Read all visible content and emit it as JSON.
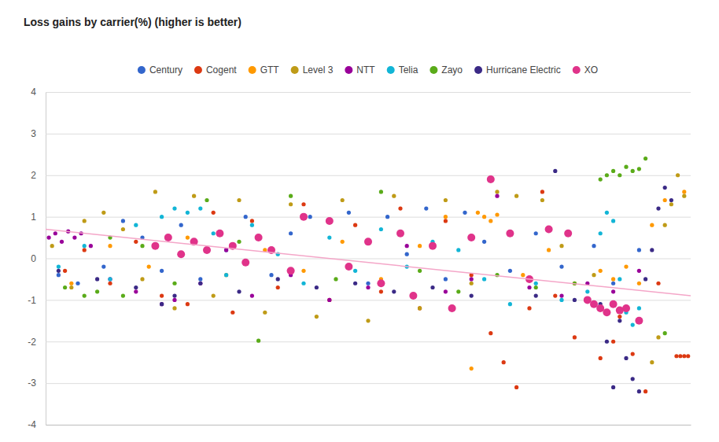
{
  "chart_data": {
    "type": "scatter",
    "title": "Loss gains by carrier(%) (higher is better)",
    "xlim": [
      0,
      100
    ],
    "ylim": [
      -4,
      4
    ],
    "yticks": [
      -4,
      -3,
      -2,
      -1,
      0,
      1,
      2,
      3,
      4
    ],
    "grid": true,
    "legend": "top",
    "tick_labels": "y",
    "series": [
      {
        "name": "Century",
        "color": "#3366cc",
        "marker": "circle",
        "x": [
          2,
          5,
          9,
          12,
          15,
          18,
          21,
          24,
          28,
          31,
          35,
          38,
          41,
          44,
          47,
          50,
          53,
          56,
          59,
          62,
          65,
          68,
          72,
          76,
          80,
          85,
          88,
          92
        ],
        "values": [
          -0.4,
          -0.6,
          -0.2,
          0.9,
          0.5,
          -0.3,
          0.8,
          -0.5,
          0.2,
          1.0,
          -0.4,
          0.6,
          1.0,
          0.9,
          1.1,
          -0.6,
          1.0,
          0.1,
          1.2,
          -0.5,
          1.1,
          0.4,
          -0.3,
          0.6,
          -0.2,
          0.3,
          -0.6,
          0.2
        ]
      },
      {
        "name": "Cogent",
        "color": "#dc3912",
        "marker": "circle",
        "x": [
          3,
          6,
          10,
          14,
          18,
          22,
          26,
          29,
          32,
          36,
          40,
          44,
          48,
          52,
          55,
          58,
          62,
          66,
          69,
          71,
          73,
          75,
          77,
          79,
          82,
          86,
          88,
          89,
          91,
          93,
          95,
          97.8,
          98.4,
          99,
          99.6
        ],
        "values": [
          -0.3,
          0.2,
          -0.6,
          0.4,
          -0.9,
          -1.1,
          1.1,
          -1.3,
          0.9,
          -0.7,
          1.3,
          -1.0,
          0.8,
          -0.8,
          1.2,
          -1.2,
          0.9,
          -0.4,
          -1.8,
          -2.5,
          -3.1,
          -1.2,
          1.6,
          -0.9,
          -1.9,
          -2.4,
          -2.0,
          -1.4,
          -2.3,
          -3.2,
          -0.6,
          -2.35,
          -2.35,
          -2.35,
          -2.35
        ]
      },
      {
        "name": "GTT",
        "color": "#ff9900",
        "marker": "circle",
        "x": [
          4,
          10,
          16,
          22,
          28,
          34,
          40,
          46,
          52,
          58,
          66,
          62,
          67,
          68,
          69,
          70,
          74,
          78,
          82,
          86,
          88,
          90,
          92,
          94,
          96,
          99
        ],
        "values": [
          -0.6,
          0.3,
          -0.2,
          0.5,
          -0.4,
          0.2,
          -0.3,
          0.4,
          -0.5,
          0.3,
          -2.65,
          1.0,
          1.1,
          1.0,
          0.9,
          1.05,
          -0.4,
          0.2,
          -0.6,
          -0.3,
          -0.5,
          -0.2,
          -0.6,
          0.8,
          1.4,
          1.6
        ]
      },
      {
        "name": "Level 3",
        "color": "#bf9b17",
        "marker": "circle",
        "x": [
          1,
          4,
          6,
          9,
          12,
          15,
          17,
          20,
          23,
          26,
          30,
          34,
          38,
          42,
          46,
          50,
          54,
          58,
          62,
          66,
          70,
          73,
          75,
          77,
          80,
          85,
          94,
          95,
          96,
          97,
          98,
          99
        ],
        "values": [
          0.3,
          -0.7,
          0.9,
          1.1,
          0.7,
          -0.5,
          1.6,
          -1.2,
          1.5,
          -0.9,
          1.4,
          -1.3,
          1.3,
          -1.4,
          1.4,
          -1.5,
          1.5,
          -1.2,
          1.4,
          -0.6,
          1.6,
          1.5,
          -0.5,
          1.4,
          0.3,
          -0.4,
          -2.5,
          -1.9,
          0.8,
          1.3,
          2.0,
          1.5
        ]
      },
      {
        "name": "NTT",
        "color": "#990099",
        "marker": "circle",
        "x": [
          0.5,
          1.5,
          2.5,
          3.5,
          4.5,
          5.5,
          7,
          10,
          14,
          18,
          20,
          24,
          28,
          32,
          38,
          44,
          50,
          56,
          62,
          66,
          70,
          75,
          80,
          84,
          88,
          92
        ],
        "values": [
          0.5,
          0.6,
          0.4,
          0.65,
          0.5,
          0.6,
          0.3,
          -0.5,
          -0.8,
          -1.1,
          -1.0,
          -0.6,
          0.2,
          -0.9,
          -0.4,
          -1.0,
          -0.7,
          0.3,
          -0.8,
          -0.5,
          1.5,
          -0.7,
          -0.9,
          -0.6,
          -0.8,
          -0.3
        ]
      },
      {
        "name": "Telia",
        "color": "#12b5d6",
        "marker": "circle",
        "x": [
          2,
          6,
          10,
          14,
          18,
          20,
          22,
          24,
          26,
          28,
          32,
          36,
          40,
          44,
          48,
          52,
          56,
          60,
          64,
          68,
          72,
          76,
          80,
          84,
          86,
          87,
          88,
          89,
          90,
          91,
          92
        ],
        "values": [
          -0.2,
          0.3,
          -0.5,
          0.8,
          1.0,
          1.2,
          1.1,
          1.2,
          0.6,
          -0.4,
          0.8,
          0.1,
          -0.6,
          0.5,
          -0.3,
          0.7,
          -0.2,
          0.4,
          0.2,
          -0.5,
          -1.1,
          -0.6,
          -1.0,
          -0.8,
          0.6,
          1.1,
          0.9,
          -0.5,
          -1.3,
          -1.6,
          -1.2
        ]
      },
      {
        "name": "Zayo",
        "color": "#5aab19",
        "marker": "circle",
        "x": [
          3,
          6,
          8,
          10,
          12,
          15,
          20,
          25,
          33,
          30,
          38,
          45,
          52,
          58,
          64,
          70,
          76,
          82,
          86,
          87,
          88,
          89,
          90,
          91,
          92,
          93,
          96
        ],
        "values": [
          -0.7,
          -0.9,
          -0.8,
          0.5,
          -0.9,
          0.3,
          -0.6,
          1.4,
          -1.98,
          0.4,
          1.5,
          -0.5,
          1.6,
          -0.3,
          -0.8,
          -0.4,
          -0.7,
          -0.6,
          1.9,
          2.0,
          2.1,
          2.0,
          2.2,
          2.1,
          2.15,
          2.4,
          -1.8
        ]
      },
      {
        "name": "Hurricane Electric",
        "color": "#3b2a86",
        "marker": "circle",
        "x": [
          2,
          8,
          14,
          18,
          20,
          24,
          30,
          36,
          42,
          48,
          54,
          60,
          66,
          79,
          76,
          82,
          86,
          87,
          88,
          89,
          90,
          91,
          92,
          93,
          94,
          95,
          96,
          97
        ],
        "values": [
          -0.3,
          -0.5,
          -0.7,
          -1.1,
          -0.9,
          -0.6,
          -0.8,
          -0.5,
          -0.7,
          -0.6,
          -0.8,
          -0.7,
          -0.9,
          2.1,
          -0.9,
          -1.0,
          -1.1,
          -2.0,
          -3.1,
          -1.5,
          -2.4,
          -2.9,
          -3.2,
          -0.5,
          0.2,
          1.2,
          1.7,
          1.4
        ]
      },
      {
        "name": "XO",
        "color": "#e0338a",
        "marker": "large-circle",
        "x": [
          17,
          19,
          21,
          23,
          25,
          27,
          29,
          31,
          33,
          35,
          38,
          40,
          44,
          47,
          50,
          52,
          55,
          57,
          60,
          63,
          66,
          69,
          72,
          75,
          78,
          81,
          84,
          85,
          86,
          87,
          88,
          89,
          90,
          92
        ],
        "values": [
          0.3,
          0.5,
          0.1,
          0.4,
          0.2,
          0.6,
          0.3,
          -0.1,
          0.5,
          0.2,
          -0.3,
          1.0,
          0.9,
          -0.2,
          0.4,
          -0.6,
          0.6,
          -0.9,
          0.3,
          -1.2,
          0.5,
          1.9,
          0.6,
          -0.5,
          0.7,
          0.6,
          -1.0,
          -1.1,
          -1.2,
          -1.3,
          -1.1,
          -1.25,
          -1.2,
          -1.5
        ]
      }
    ],
    "trendline": {
      "x": [
        0,
        100
      ],
      "values": [
        0.7,
        -0.9
      ],
      "color": "#f4a6c8"
    }
  }
}
